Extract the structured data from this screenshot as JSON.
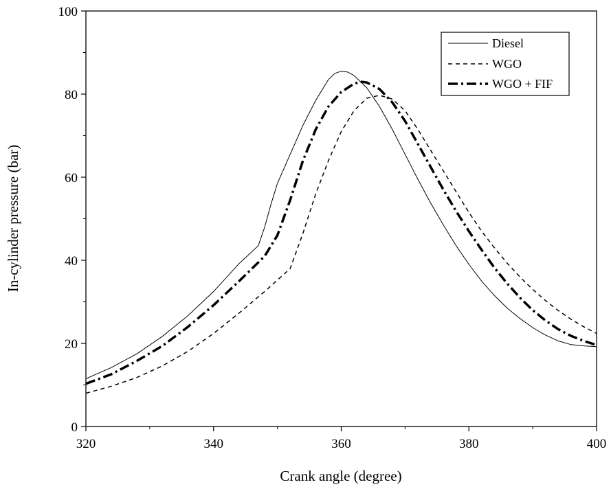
{
  "chart_data": {
    "type": "line",
    "xlabel": "Crank angle (degree)",
    "ylabel": "In-cylinder pressure (bar)",
    "xlim": [
      320,
      400
    ],
    "ylim": [
      0,
      100
    ],
    "xticks": [
      320,
      340,
      360,
      380,
      400
    ],
    "yticks": [
      0,
      20,
      40,
      60,
      80,
      100
    ],
    "grid": false,
    "legend_position": "top-right",
    "series": [
      {
        "name": "Diesel",
        "style": "solid",
        "x": [
          320,
          324,
          328,
          332,
          336,
          340,
          344,
          347,
          348,
          349,
          350,
          352,
          354,
          356,
          358,
          359,
          360,
          361,
          362,
          364,
          366,
          368,
          370,
          372,
          374,
          376,
          378,
          380,
          382,
          384,
          386,
          388,
          390,
          392,
          394,
          396,
          398,
          400
        ],
        "values": [
          11.5,
          14.2,
          17.5,
          21.7,
          26.7,
          32.5,
          39.2,
          43.5,
          48.0,
          53.5,
          58.5,
          65.5,
          72.5,
          78.5,
          83.5,
          85.0,
          85.5,
          85.3,
          84.5,
          81.5,
          77.0,
          71.5,
          65.5,
          59.5,
          53.8,
          48.5,
          43.5,
          39.0,
          35.0,
          31.5,
          28.5,
          26.0,
          23.8,
          22.0,
          20.6,
          19.7,
          19.4,
          19.2
        ]
      },
      {
        "name": "WGO",
        "style": "dashed",
        "x": [
          320,
          324,
          328,
          332,
          336,
          340,
          344,
          348,
          352,
          354,
          356,
          358,
          360,
          362,
          364,
          366,
          368,
          370,
          372,
          374,
          376,
          378,
          380,
          382,
          384,
          386,
          388,
          390,
          392,
          394,
          396,
          398,
          400
        ],
        "values": [
          8.0,
          9.7,
          11.8,
          14.6,
          18.1,
          22.4,
          27.3,
          32.5,
          38.0,
          46.5,
          56.0,
          64.0,
          71.0,
          76.0,
          79.0,
          79.7,
          78.8,
          76.0,
          71.5,
          66.5,
          61.5,
          56.5,
          51.5,
          47.0,
          43.0,
          39.3,
          36.0,
          33.0,
          30.3,
          27.9,
          25.8,
          24.0,
          22.4
        ]
      },
      {
        "name": "WGO + FIF",
        "style": "dashdot",
        "x": [
          320,
          324,
          328,
          332,
          336,
          340,
          344,
          348,
          350,
          352,
          354,
          356,
          358,
          360,
          362,
          363,
          364,
          366,
          368,
          370,
          372,
          374,
          376,
          378,
          380,
          382,
          384,
          386,
          388,
          390,
          392,
          394,
          396,
          398,
          400
        ],
        "values": [
          10.3,
          12.6,
          15.8,
          19.4,
          24.0,
          29.2,
          35.0,
          41.0,
          46.0,
          54.5,
          64.0,
          71.5,
          77.0,
          80.5,
          82.5,
          83.0,
          82.8,
          81.2,
          78.0,
          73.5,
          68.0,
          62.5,
          57.0,
          51.8,
          47.0,
          42.5,
          38.2,
          34.4,
          31.0,
          28.0,
          25.5,
          23.4,
          21.8,
          20.6,
          19.6
        ]
      }
    ]
  }
}
